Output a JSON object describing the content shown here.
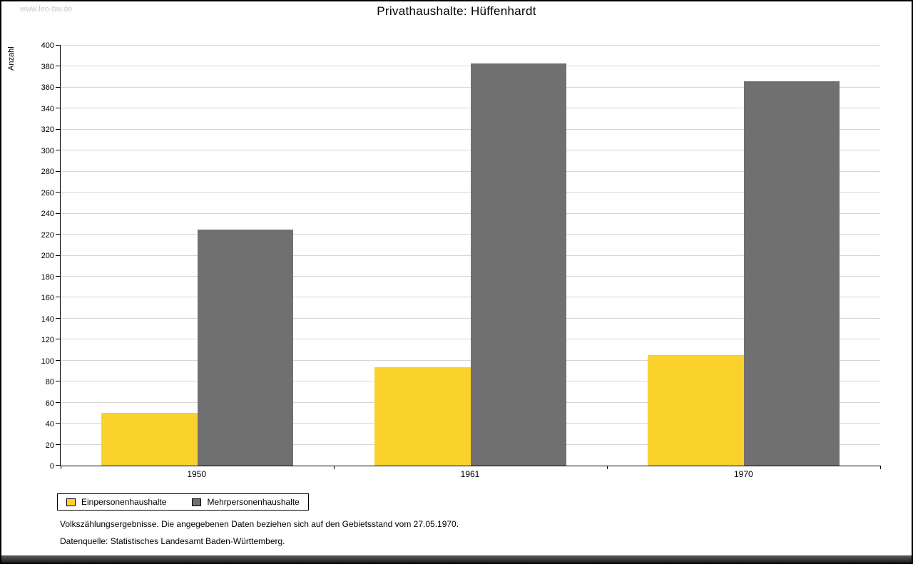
{
  "watermark": "www.leo-bw.de",
  "chart_data": {
    "type": "bar",
    "title": "Privathaushalte: Hüffenhardt",
    "xlabel": "",
    "ylabel": "Anzahl",
    "categories": [
      "1950",
      "1961",
      "1970"
    ],
    "series": [
      {
        "name": "Einpersonenhaushalte",
        "color": "#FBD22B",
        "values": [
          50,
          94,
          105
        ]
      },
      {
        "name": "Mehrpersonenhaushalte",
        "color": "#707070",
        "values": [
          225,
          383,
          366
        ]
      }
    ],
    "ylim": [
      0,
      400
    ],
    "ytick_step": 20,
    "grid": true,
    "legend_position": "bottom-left"
  },
  "footer": {
    "line1": "Volkszählungsergebnisse. Die angegebenen Daten beziehen sich auf den Gebietsstand vom 27.05.1970.",
    "line2": "Datenquelle: Statistisches Landesamt Baden-Württemberg."
  }
}
